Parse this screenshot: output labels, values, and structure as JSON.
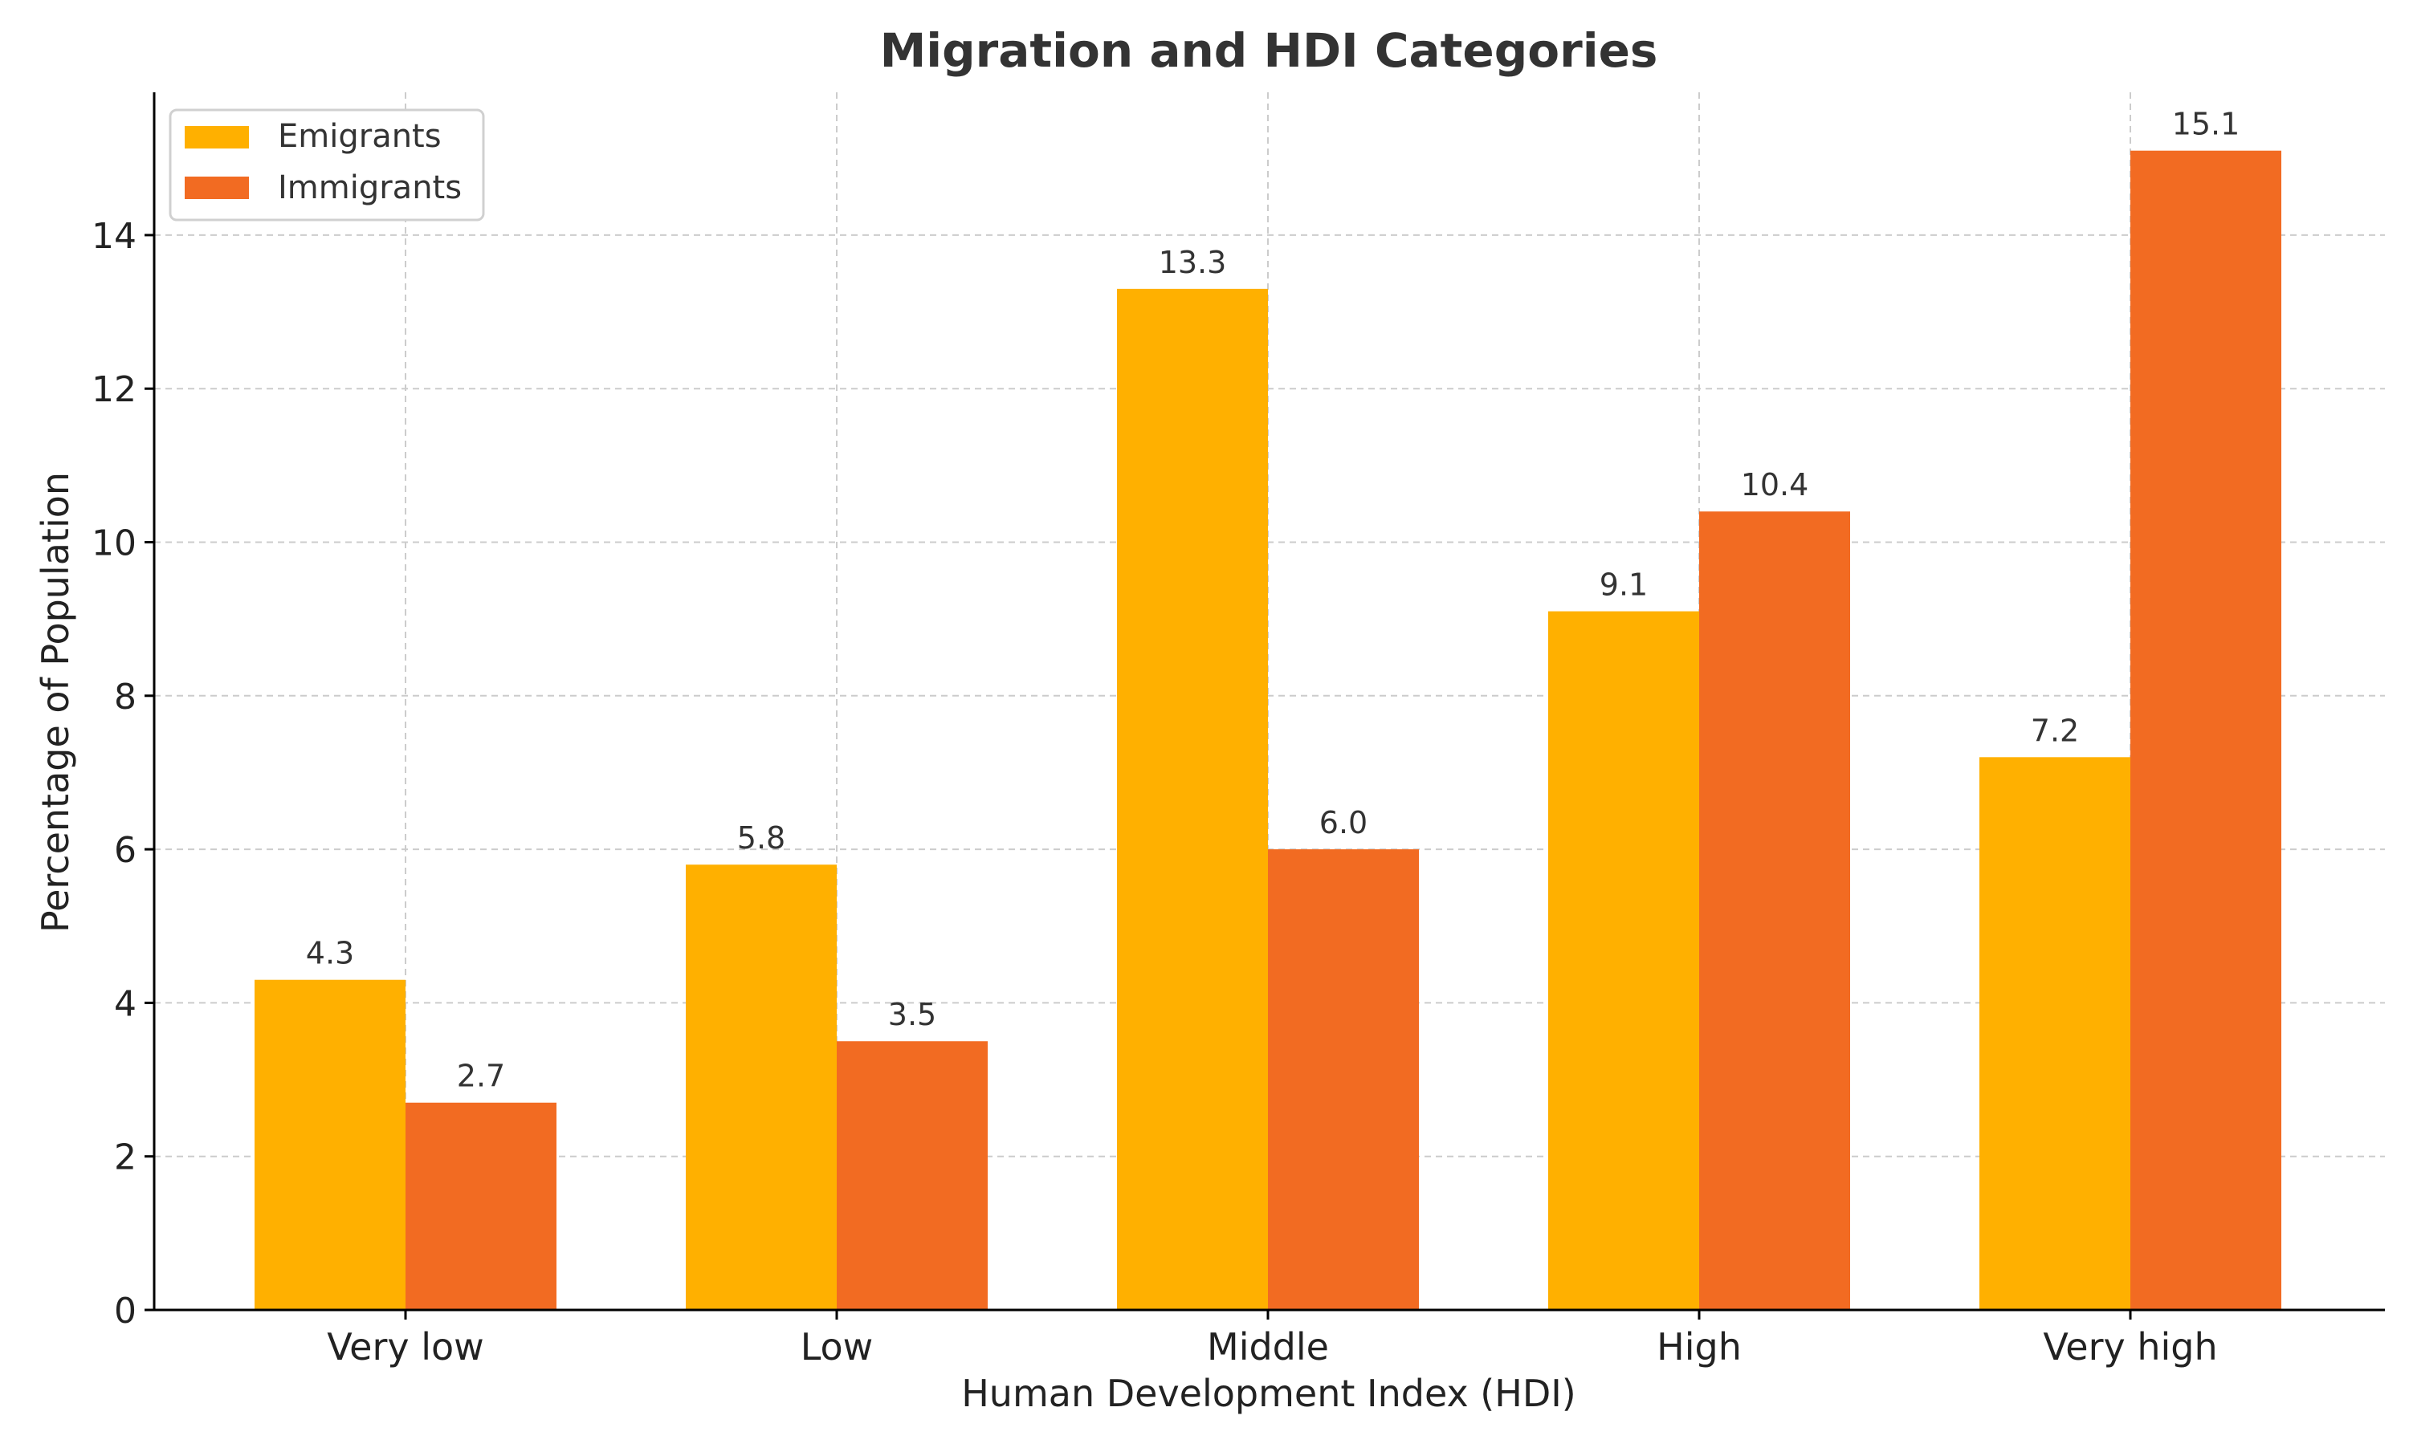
{
  "chart_data": {
    "type": "bar",
    "title": "Migration and HDI Categories",
    "xlabel": "Human Development Index (HDI)",
    "ylabel": "Percentage of Population",
    "categories": [
      "Very low",
      "Low",
      "Middle",
      "High",
      "Very high"
    ],
    "series": [
      {
        "name": "Emigrants",
        "values": [
          4.3,
          5.8,
          13.3,
          9.1,
          7.2
        ],
        "color": "#FFB000"
      },
      {
        "name": "Immigrants",
        "values": [
          2.7,
          3.5,
          6.0,
          10.4,
          15.1
        ],
        "color": "#F26B22"
      }
    ],
    "ylim": [
      0,
      15.86
    ],
    "yticks": [
      0,
      2,
      4,
      6,
      8,
      10,
      12,
      14
    ],
    "grid": true,
    "legend": "top-left",
    "value_labels": true,
    "value_label_decimals": 1,
    "colors": {
      "text": "#333333",
      "axis": "#000000",
      "grid": "#cccccc"
    }
  }
}
